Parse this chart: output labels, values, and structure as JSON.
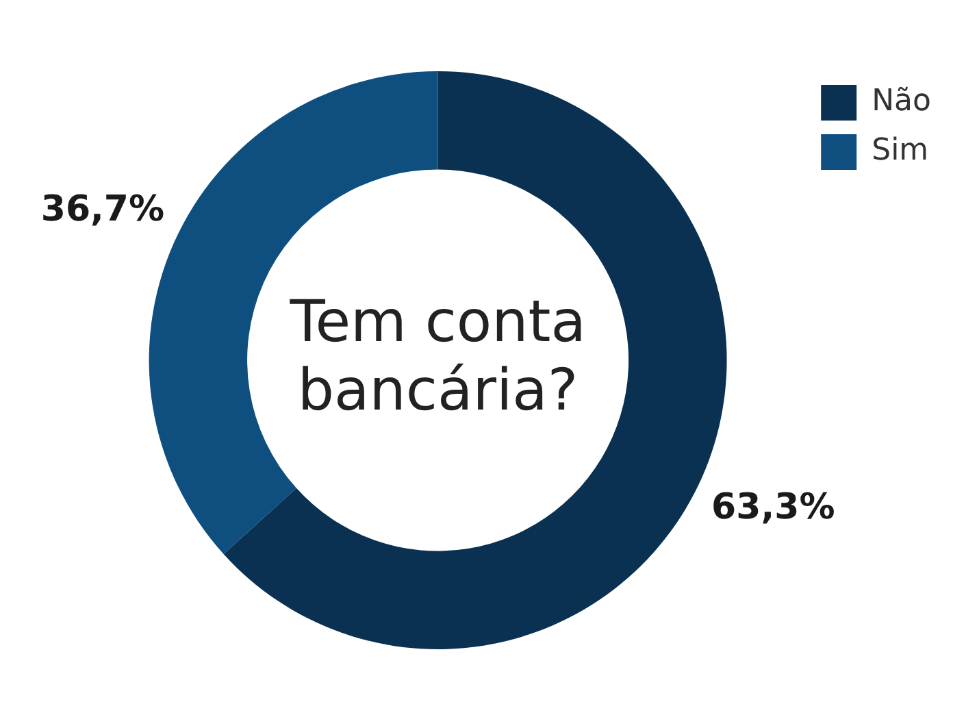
{
  "chart_data": {
    "type": "donut",
    "title": "Tem conta bancária?",
    "categories": [
      "Não",
      "Sim"
    ],
    "values": [
      63.3,
      36.7
    ],
    "colors": [
      "#0a3152",
      "#0e4f7f"
    ],
    "value_labels": [
      "63,3%",
      "36,7%"
    ],
    "legend": "top right"
  }
}
